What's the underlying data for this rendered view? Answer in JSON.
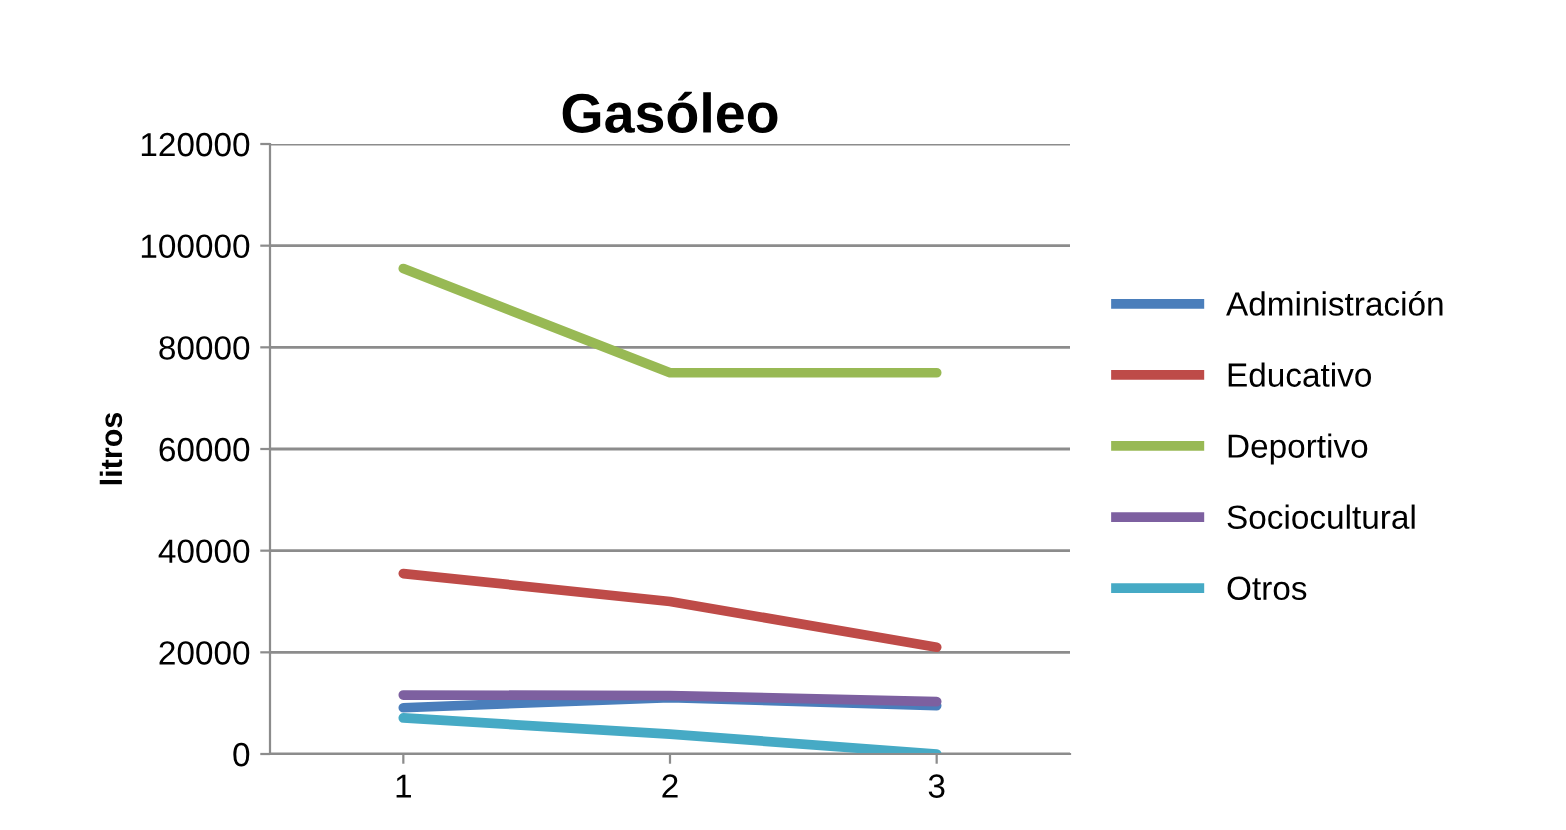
{
  "chart_data": {
    "type": "line",
    "title": "Gasóleo",
    "ylabel": "litros",
    "categories": [
      "1",
      "2",
      "3"
    ],
    "series": [
      {
        "name": "Administración",
        "color": "#4a7ebb",
        "values": [
          9100,
          11100,
          9500
        ]
      },
      {
        "name": "Educativo",
        "color": "#be4b48",
        "values": [
          35500,
          30000,
          21000
        ]
      },
      {
        "name": "Deportivo",
        "color": "#98b954",
        "values": [
          95500,
          75000,
          75000
        ]
      },
      {
        "name": "Sociocultural",
        "color": "#7d60a0",
        "values": [
          11600,
          11500,
          10300
        ]
      },
      {
        "name": "Otros",
        "color": "#46aac5",
        "values": [
          7100,
          3900,
          0
        ]
      }
    ],
    "ylim": [
      0,
      120000
    ],
    "yticks": [
      0,
      20000,
      40000,
      60000,
      80000,
      100000,
      120000
    ],
    "grid": "y",
    "legend": "right",
    "marker": "none",
    "line_style": "solid"
  }
}
